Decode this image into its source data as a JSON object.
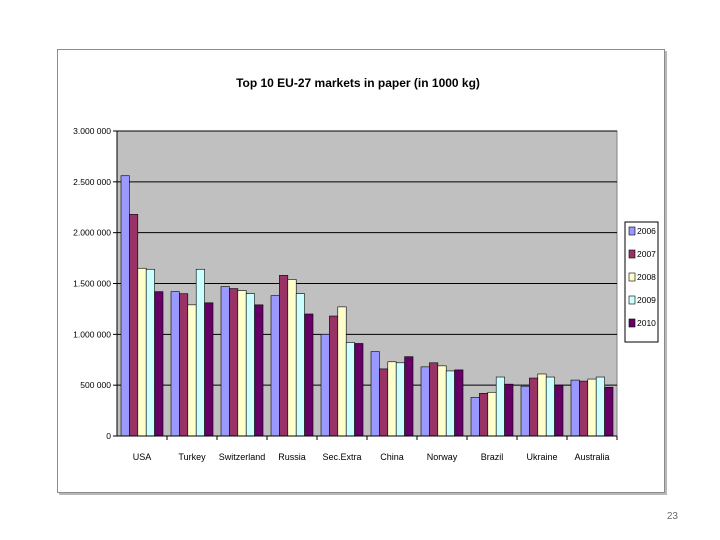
{
  "page": {
    "number": "23"
  },
  "chart_data": {
    "type": "bar",
    "title": "Top 10 EU-27 markets in paper (in 1000 kg)",
    "xlabel": "",
    "ylabel": "",
    "ylim": [
      0,
      3000000
    ],
    "yticks": [
      0,
      500000,
      1000000,
      1500000,
      2000000,
      2500000,
      3000000
    ],
    "ytick_labels": [
      "0",
      "500 000",
      "1.000 000",
      "1.500 000",
      "2.000 000",
      "2.500 000",
      "3.000 000"
    ],
    "categories": [
      "USA",
      "Turkey",
      "Switzerland",
      "Russia",
      "Sec.Extra",
      "China",
      "Norway",
      "Brazil",
      "Ukraine",
      "Australia"
    ],
    "grid": true,
    "legend_position": "right",
    "plot_background": "#c0c0c0",
    "series": [
      {
        "name": "2006",
        "color": "#9999ff",
        "values": [
          2560000,
          1420000,
          1470000,
          1380000,
          1000000,
          830000,
          680000,
          380000,
          490000,
          550000
        ]
      },
      {
        "name": "2007",
        "color": "#993366",
        "values": [
          2180000,
          1400000,
          1450000,
          1580000,
          1180000,
          660000,
          720000,
          420000,
          570000,
          540000
        ]
      },
      {
        "name": "2008",
        "color": "#ffffcc",
        "values": [
          1650000,
          1290000,
          1430000,
          1540000,
          1270000,
          730000,
          690000,
          430000,
          610000,
          560000
        ]
      },
      {
        "name": "2009",
        "color": "#ccffff",
        "values": [
          1640000,
          1640000,
          1400000,
          1400000,
          920000,
          720000,
          640000,
          580000,
          580000,
          580000
        ]
      },
      {
        "name": "2010",
        "color": "#660066",
        "values": [
          1420000,
          1310000,
          1290000,
          1200000,
          910000,
          780000,
          650000,
          510000,
          500000,
          480000
        ]
      }
    ]
  }
}
